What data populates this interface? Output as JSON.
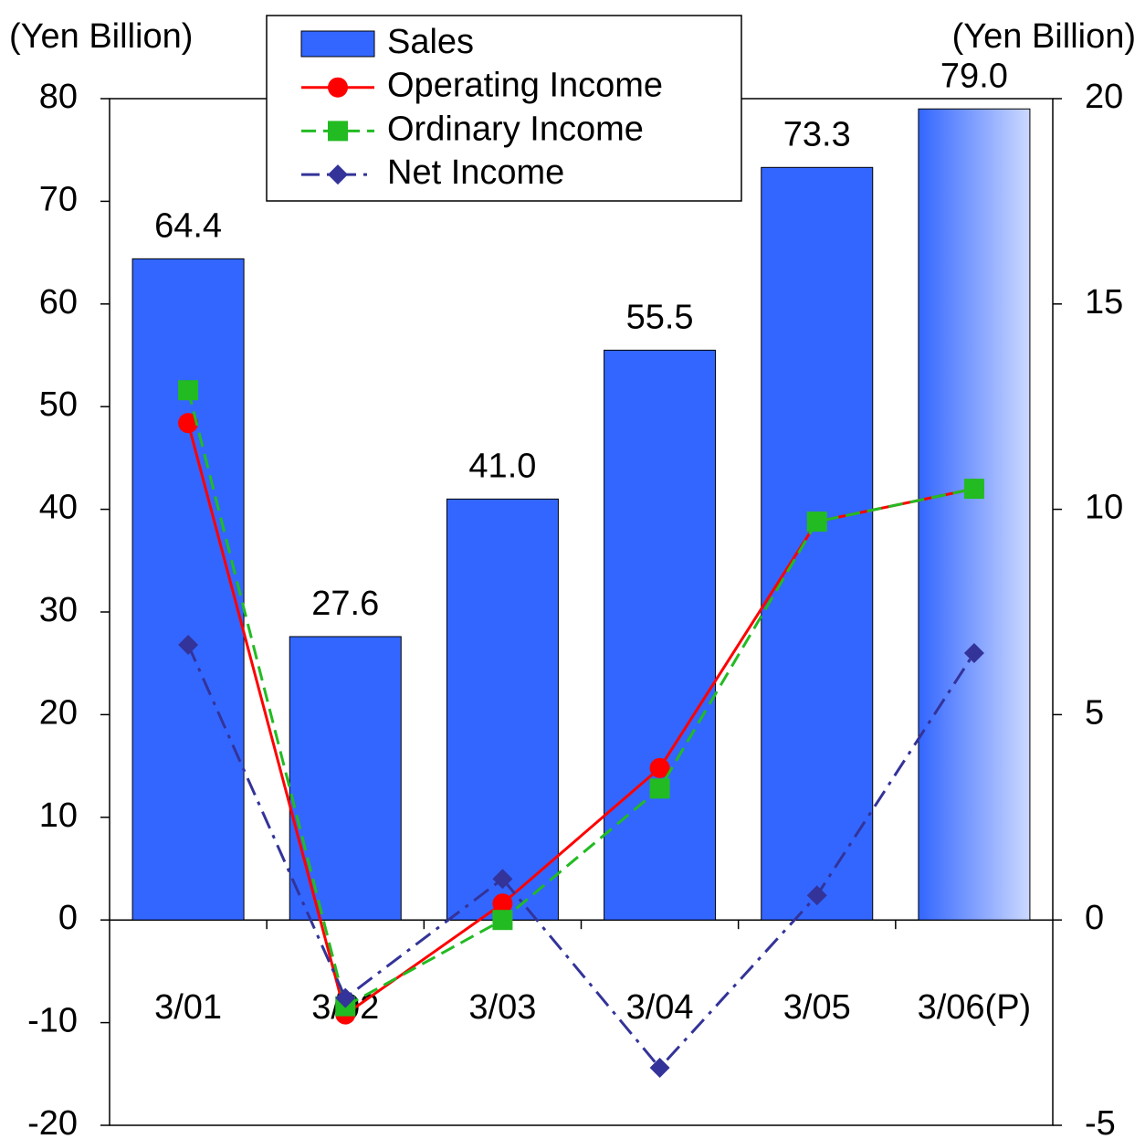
{
  "chart_data": {
    "type": "bar_line",
    "y_axis_label": "(Yen Billion)",
    "y2_axis_label": "(Yen Billion)",
    "categories": [
      "3/01",
      "3/02",
      "3/03",
      "3/04",
      "3/05",
      "3/06(P)"
    ],
    "series": [
      {
        "name": "Sales",
        "type": "bar",
        "color": "#3366ff",
        "values": [
          64.4,
          27.6,
          41.0,
          55.5,
          73.3,
          79.0
        ],
        "value_labels": [
          "64.4",
          "27.6",
          "41.0",
          "55.5",
          "73.3",
          "79.0"
        ]
      },
      {
        "name": "Operating Income",
        "type": "line",
        "axis": "y2",
        "color": "#ff0000",
        "marker": "circle",
        "dash": "solid",
        "values": [
          12.1,
          -2.3,
          0.4,
          3.7,
          9.7,
          10.5
        ]
      },
      {
        "name": "Ordinary Income",
        "type": "line",
        "axis": "y2",
        "color": "#22bb22",
        "marker": "square",
        "dash": "dash",
        "values": [
          12.9,
          -2.1,
          0.0,
          3.2,
          9.7,
          10.5
        ]
      },
      {
        "name": "Net Income",
        "type": "line",
        "axis": "y2",
        "color": "#333399",
        "marker": "diamond",
        "dash": "dashdot",
        "values": [
          6.7,
          -1.9,
          1.0,
          -3.6,
          0.6,
          6.5
        ]
      }
    ],
    "ylim": [
      -20,
      80
    ],
    "yticks": [
      -20,
      -10,
      0,
      10,
      20,
      30,
      40,
      50,
      60,
      70,
      80
    ],
    "y2lim": [
      -5,
      20
    ],
    "y2ticks": [
      -5,
      0,
      5,
      10,
      15,
      20
    ],
    "legend": "top"
  }
}
